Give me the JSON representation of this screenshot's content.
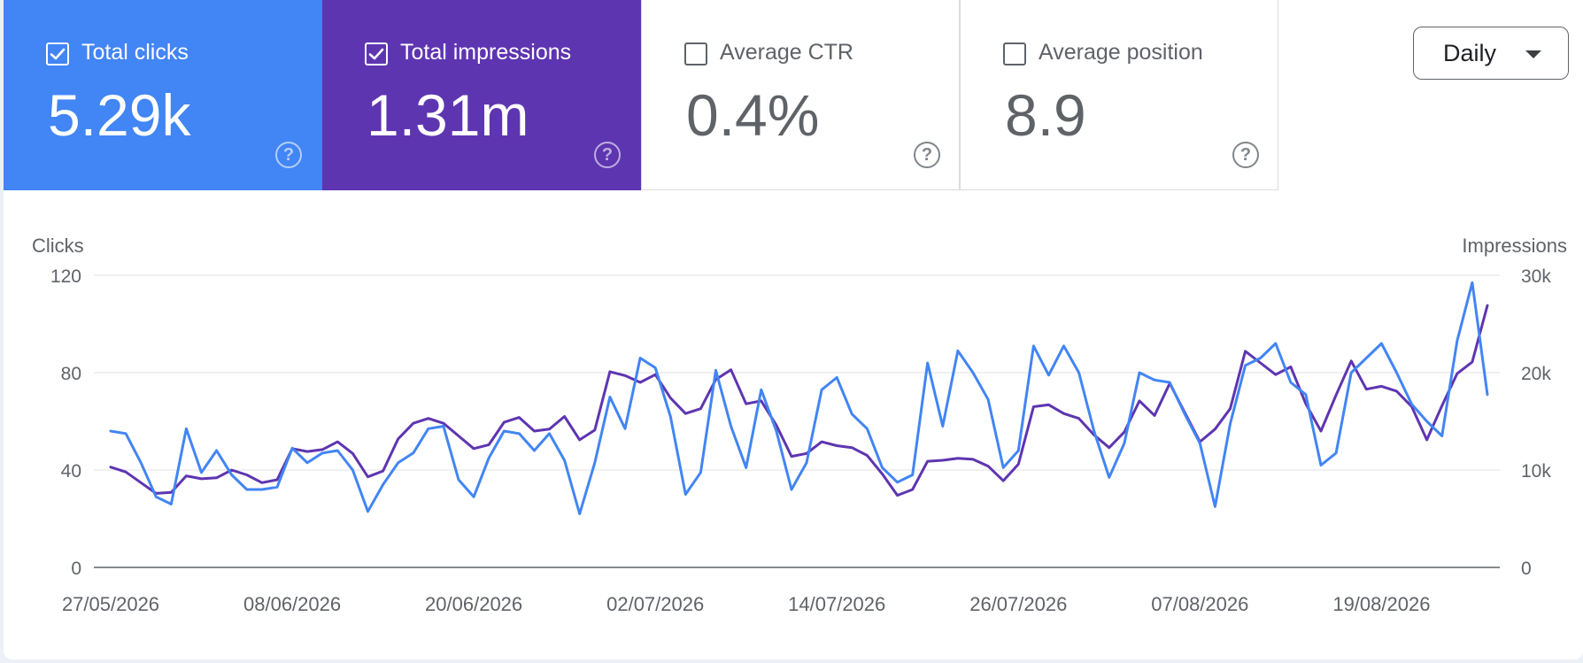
{
  "cards": [
    {
      "label": "Total clicks",
      "value": "5.29k",
      "checked": true,
      "color": "#4285f4"
    },
    {
      "label": "Total impressions",
      "value": "1.31m",
      "checked": true,
      "color": "#5e35b1"
    },
    {
      "label": "Average CTR",
      "value": "0.4%",
      "checked": false,
      "color": "#ffffff"
    },
    {
      "label": "Average position",
      "value": "8.9",
      "checked": false,
      "color": "#ffffff"
    }
  ],
  "icons": {
    "checkbox": "checkbox-icon",
    "help": "help-circle-icon",
    "caret": "caret-down-icon"
  },
  "help_glyph": "?",
  "check_glyph": "✓",
  "dropdown": {
    "label": "Daily"
  },
  "chart_data": {
    "type": "line",
    "left_axis_label": "Clicks",
    "right_axis_label": "Impressions",
    "y_left_ticks": [
      "0",
      "40",
      "80",
      "120"
    ],
    "y_right_ticks": [
      "0",
      "10k",
      "20k",
      "30k"
    ],
    "ylim_left": [
      0,
      120
    ],
    "ylim_right": [
      0,
      30000
    ],
    "x_tick_labels": [
      "27/05/2026",
      "08/06/2026",
      "20/06/2026",
      "02/07/2026",
      "14/07/2026",
      "26/07/2026",
      "07/08/2026",
      "19/08/2026"
    ],
    "grid": true,
    "series": [
      {
        "name": "Total clicks",
        "axis": "left",
        "color": "#4285f4",
        "values": [
          56,
          55,
          43,
          29,
          26,
          57,
          39,
          48,
          38,
          32,
          32,
          33,
          49,
          43,
          47,
          48,
          40,
          23,
          34,
          43,
          47,
          57,
          58,
          36,
          29,
          45,
          56,
          55,
          48,
          55,
          44,
          22,
          43,
          70,
          57,
          86,
          82,
          62,
          30,
          39,
          81,
          58,
          41,
          73,
          56,
          32,
          43,
          73,
          78,
          63,
          57,
          41,
          35,
          38,
          84,
          58,
          89,
          80,
          69,
          41,
          48,
          91,
          79,
          91,
          80,
          56,
          37,
          51,
          80,
          77,
          76,
          63,
          51,
          25,
          59,
          83,
          86,
          92,
          76,
          71,
          42,
          47,
          80,
          86,
          92,
          80,
          67,
          60,
          54,
          93,
          117,
          71
        ]
      },
      {
        "name": "Total impressions",
        "axis": "right",
        "color": "#5e35b1",
        "values": [
          10300,
          9800,
          8700,
          7600,
          7700,
          9400,
          9100,
          9200,
          10000,
          9500,
          8700,
          9000,
          12200,
          11900,
          12100,
          12900,
          11700,
          9300,
          9900,
          13200,
          14800,
          15300,
          14800,
          13500,
          12200,
          12600,
          14900,
          15400,
          14000,
          14200,
          15500,
          13100,
          14100,
          20100,
          19700,
          19000,
          19800,
          17400,
          15800,
          16300,
          19300,
          20300,
          16800,
          17100,
          14600,
          11400,
          11700,
          12900,
          12500,
          12300,
          11500,
          9600,
          7400,
          8000,
          10900,
          11000,
          11200,
          11100,
          10400,
          8900,
          10600,
          16500,
          16700,
          15800,
          15300,
          13600,
          12300,
          13900,
          17100,
          15600,
          18900,
          15900,
          12900,
          14200,
          16300,
          22200,
          21000,
          19800,
          20600,
          16800,
          14000,
          17700,
          21200,
          18300,
          18600,
          18100,
          16500,
          13100,
          16600,
          19900,
          21100,
          26900
        ]
      }
    ]
  }
}
